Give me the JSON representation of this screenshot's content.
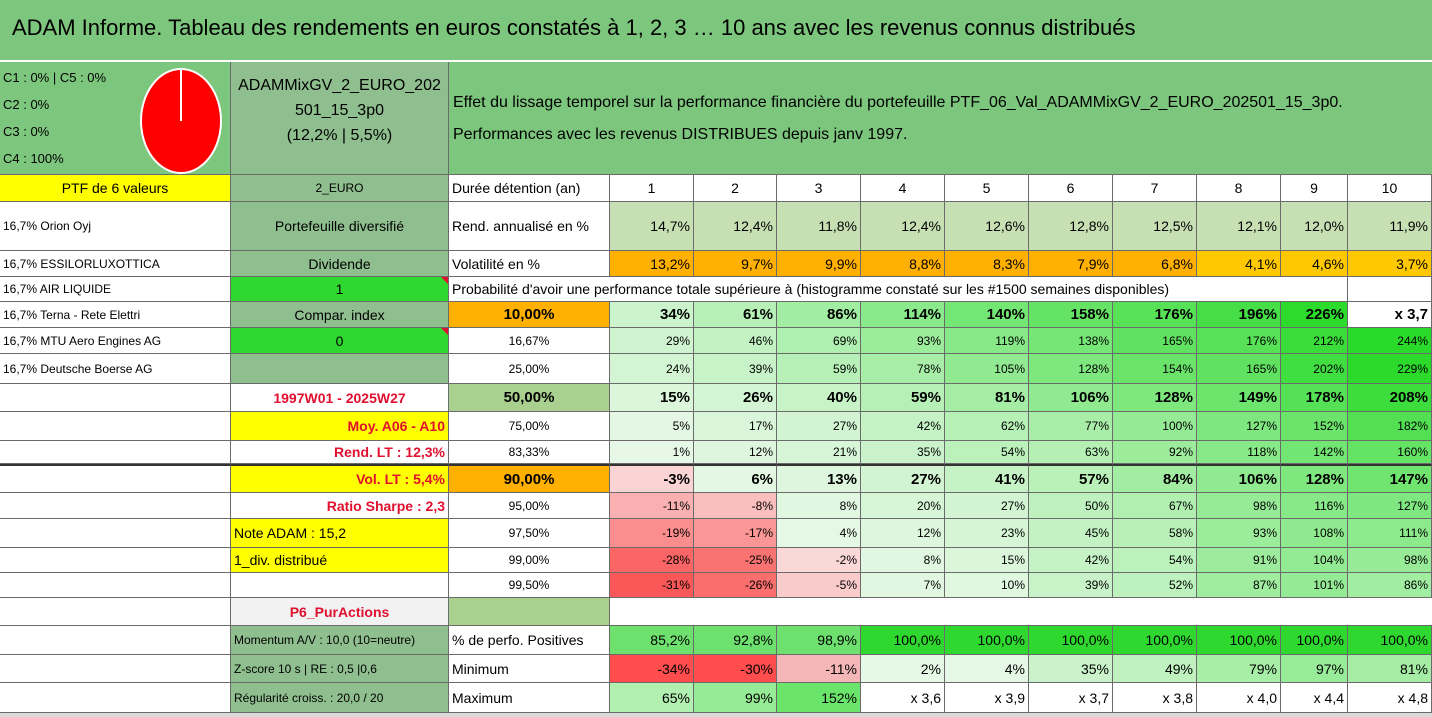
{
  "title": "ADAM Informe. Tableau des rendements en euros constatés à 1, 2, 3 … 10 ans avec les revenus connus distribués",
  "colors": {
    "header_green": "#7dc67d",
    "dark_green": "#8fbf8f",
    "bright_green": "#2ed82e",
    "yellow": "#ffff00",
    "orange": "#ffb000",
    "red": "#ff2a2a",
    "white": "#ffffff"
  },
  "composition": {
    "lines": [
      "C1 : 0% | C5 : 0%",
      "C2 : 0%",
      "C3 : 0%",
      "C4 : 100%"
    ],
    "pie_percent": 100
  },
  "portfolio": {
    "name": "ADAMMixGV_2_EURO_202501_15_3p0",
    "name_line1": "ADAMMixGV_2_EURO_202",
    "name_line2": "501_15_3p0",
    "stats": "(12,2% | 5,5%)"
  },
  "description": {
    "line1": "Effet du lissage temporel sur la performance financière du portefeuille PTF_06_Val_ADAMMixGV_2_EURO_202501_15_3p0.",
    "line2": "Performances avec les revenus DISTRIBUES depuis janv 1997."
  },
  "left": {
    "ptf_label": "PTF de 6 valeurs",
    "holdings": [
      "16,7% Orion Oyj",
      "16,7% ESSILORLUXOTTICA",
      "16,7% AIR LIQUIDE",
      "16,7% Terna - Rete Elettri",
      "16,7% MTU Aero Engines AG",
      "16,7% Deutsche Boerse AG"
    ]
  },
  "mid": {
    "currency": "2_EURO",
    "diversified": "Portefeuille diversifié",
    "dividend_label": "Dividende",
    "dividend_value": "1",
    "compar_label": "Compar. index",
    "compar_value": "0",
    "period": "1997W01 - 2025W27",
    "moy": "Moy. A06 - A10",
    "rend_lt": "Rend. LT : 12,3%",
    "vol_lt": "Vol. LT : 5,4%",
    "sharpe": "Ratio Sharpe : 2,3",
    "note": "Note ADAM : 15,2",
    "div": "1_div. distribué",
    "p6": "P6_PurActions",
    "momentum": "Momentum A/V : 10,0 (10=neutre)",
    "zscore": "Z-score 10 s | RE : 0,5 |0,6",
    "regularite": "Régularité croiss. : 20,0 / 20"
  },
  "table": {
    "duration_label": "Durée détention (an)",
    "years": [
      "1",
      "2",
      "3",
      "4",
      "5",
      "6",
      "7",
      "8",
      "9",
      "10"
    ],
    "rend_label": "Rend. annualisé en %",
    "rend": [
      "14,7%",
      "12,4%",
      "11,8%",
      "12,4%",
      "12,6%",
      "12,8%",
      "12,5%",
      "12,1%",
      "12,0%",
      "11,9%"
    ],
    "vol_label": "Volatilité en %",
    "vol": [
      "13,2%",
      "9,7%",
      "9,9%",
      "8,8%",
      "8,3%",
      "7,9%",
      "6,8%",
      "4,1%",
      "4,6%",
      "3,7%"
    ],
    "prob_title": "Probabilité d'avoir une performance totale supérieure à (histogramme constaté sur les #1500 semaines disponibles)",
    "prob_rows": [
      {
        "p": "10,00%",
        "v": [
          "34%",
          "61%",
          "86%",
          "114%",
          "140%",
          "158%",
          "176%",
          "196%",
          "226%",
          "x 3,7"
        ]
      },
      {
        "p": "16,67%",
        "v": [
          "29%",
          "46%",
          "69%",
          "93%",
          "119%",
          "138%",
          "165%",
          "176%",
          "212%",
          "244%"
        ]
      },
      {
        "p": "25,00%",
        "v": [
          "24%",
          "39%",
          "59%",
          "78%",
          "105%",
          "128%",
          "154%",
          "165%",
          "202%",
          "229%"
        ]
      },
      {
        "p": "50,00%",
        "v": [
          "15%",
          "26%",
          "40%",
          "59%",
          "81%",
          "106%",
          "128%",
          "149%",
          "178%",
          "208%"
        ]
      },
      {
        "p": "75,00%",
        "v": [
          "5%",
          "17%",
          "27%",
          "42%",
          "62%",
          "77%",
          "100%",
          "127%",
          "152%",
          "182%"
        ]
      },
      {
        "p": "83,33%",
        "v": [
          "1%",
          "12%",
          "21%",
          "35%",
          "54%",
          "63%",
          "92%",
          "118%",
          "142%",
          "160%"
        ]
      },
      {
        "p": "90,00%",
        "v": [
          "-3%",
          "6%",
          "13%",
          "27%",
          "41%",
          "57%",
          "84%",
          "106%",
          "128%",
          "147%"
        ]
      },
      {
        "p": "95,00%",
        "v": [
          "-11%",
          "-8%",
          "8%",
          "20%",
          "27%",
          "50%",
          "67%",
          "98%",
          "116%",
          "127%"
        ]
      },
      {
        "p": "97,50%",
        "v": [
          "-19%",
          "-17%",
          "4%",
          "12%",
          "23%",
          "45%",
          "58%",
          "93%",
          "108%",
          "111%"
        ]
      },
      {
        "p": "99,00%",
        "v": [
          "-28%",
          "-25%",
          "-2%",
          "8%",
          "15%",
          "42%",
          "54%",
          "91%",
          "104%",
          "98%"
        ]
      },
      {
        "p": "99,50%",
        "v": [
          "-31%",
          "-26%",
          "-5%",
          "7%",
          "10%",
          "39%",
          "52%",
          "87%",
          "101%",
          "86%"
        ]
      }
    ],
    "pos_label": "% de perfo. Positives",
    "pos": [
      "85,2%",
      "92,8%",
      "98,9%",
      "100,0%",
      "100,0%",
      "100,0%",
      "100,0%",
      "100,0%",
      "100,0%",
      "100,0%"
    ],
    "min_label": "Minimum",
    "min": [
      "-34%",
      "-30%",
      "-11%",
      "2%",
      "4%",
      "35%",
      "49%",
      "79%",
      "97%",
      "81%"
    ],
    "max_label": "Maximum",
    "max": [
      "65%",
      "99%",
      "152%",
      "x 3,6",
      "x 3,9",
      "x 3,7",
      "x 3,8",
      "x 4,0",
      "x 4,4",
      "x 4,8"
    ]
  }
}
